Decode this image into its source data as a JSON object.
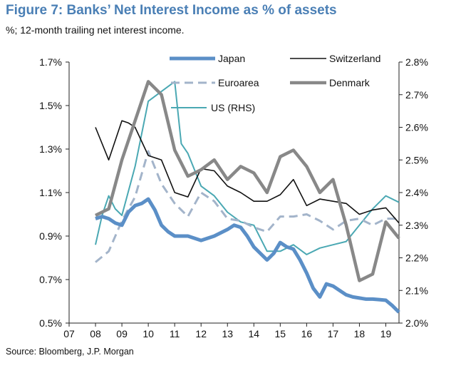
{
  "title": "Figure 7: Banks’ Net Interest Income as % of assets",
  "subtitle": "%; 12-month trailing net interest income.",
  "source": "Source: Bloomberg, J.P. Morgan",
  "chart_data": {
    "type": "line",
    "x_tick_labels": [
      "07",
      "08",
      "09",
      "10",
      "11",
      "12",
      "13",
      "14",
      "15",
      "16",
      "17",
      "18",
      "19"
    ],
    "x_range": [
      7,
      19.5
    ],
    "y_left": {
      "ticks": [
        "1.7%",
        "1.5%",
        "1.3%",
        "1.1%",
        "0.9%",
        "0.7%",
        "0.5%"
      ],
      "range": [
        0.5,
        1.7
      ]
    },
    "y_right": {
      "ticks": [
        "2.8%",
        "2.7%",
        "2.6%",
        "2.5%",
        "2.4%",
        "2.3%",
        "2.2%",
        "2.1%",
        "2.0%"
      ],
      "range": [
        2.0,
        2.8
      ]
    },
    "series": [
      {
        "name": "Japan",
        "axis": "left",
        "color": "#5b8fc7",
        "style": "solid",
        "width": 5,
        "x": [
          8,
          8.25,
          8.5,
          8.75,
          9,
          9.25,
          9.5,
          9.75,
          10,
          10.25,
          10.5,
          10.75,
          11,
          11.5,
          12,
          12.5,
          13,
          13.25,
          13.5,
          13.75,
          14,
          14.25,
          14.5,
          14.75,
          15,
          15.25,
          15.5,
          15.75,
          16,
          16.25,
          16.5,
          16.75,
          17,
          17.25,
          17.5,
          17.75,
          18,
          18.25,
          18.5,
          18.75,
          19,
          19.25,
          19.5
        ],
        "y": [
          0.98,
          0.99,
          0.98,
          0.96,
          0.95,
          1.01,
          1.04,
          1.05,
          1.07,
          1.02,
          0.95,
          0.92,
          0.9,
          0.9,
          0.88,
          0.9,
          0.93,
          0.95,
          0.94,
          0.9,
          0.85,
          0.82,
          0.79,
          0.82,
          0.87,
          0.85,
          0.84,
          0.79,
          0.73,
          0.66,
          0.62,
          0.68,
          0.67,
          0.65,
          0.63,
          0.62,
          0.615,
          0.61,
          0.61,
          0.608,
          0.605,
          0.58,
          0.55
        ]
      },
      {
        "name": "Switzerland",
        "axis": "left",
        "color": "#111111",
        "style": "solid",
        "width": 1.6,
        "x": [
          8,
          8.5,
          9,
          9.25,
          9.5,
          10,
          10.5,
          11,
          11.5,
          12,
          12.5,
          13,
          13.5,
          14,
          14.5,
          15,
          15.5,
          16,
          16.5,
          17,
          17.5,
          18,
          18.5,
          19,
          19.5
        ],
        "y": [
          1.4,
          1.25,
          1.43,
          1.42,
          1.4,
          1.27,
          1.25,
          1.1,
          1.08,
          1.21,
          1.2,
          1.13,
          1.1,
          1.06,
          1.06,
          1.09,
          1.16,
          1.04,
          1.07,
          1.06,
          1.05,
          1.0,
          1.02,
          1.03,
          0.96
        ]
      },
      {
        "name": "Euroarea",
        "axis": "left",
        "color": "#a3b4ca",
        "style": "dashed",
        "width": 3,
        "x": [
          8,
          8.5,
          9,
          9.5,
          10,
          10.5,
          11,
          11.5,
          12,
          12.5,
          13,
          13.5,
          14,
          14.5,
          15,
          15.5,
          16,
          16.5,
          17,
          17.5,
          18,
          18.5,
          19,
          19.5
        ],
        "y": [
          0.78,
          0.83,
          0.97,
          1.08,
          1.29,
          1.14,
          1.05,
          0.99,
          1.1,
          1.06,
          0.98,
          0.97,
          0.94,
          0.92,
          0.99,
          0.99,
          1.0,
          0.97,
          0.93,
          0.97,
          0.98,
          0.95,
          0.98,
          0.98
        ]
      },
      {
        "name": "Denmark",
        "axis": "right",
        "color": "#888888",
        "style": "solid",
        "width": 4.5,
        "x": [
          8,
          8.5,
          9,
          9.5,
          10,
          10.5,
          11,
          11.5,
          12,
          12.5,
          13,
          13.5,
          14,
          14.5,
          15,
          15.5,
          16,
          16.5,
          17,
          17.5,
          18,
          18.5,
          19,
          19.5
        ],
        "y": [
          2.33,
          2.35,
          2.5,
          2.62,
          2.74,
          2.7,
          2.53,
          2.45,
          2.47,
          2.5,
          2.44,
          2.48,
          2.46,
          2.4,
          2.51,
          2.53,
          2.48,
          2.4,
          2.44,
          2.3,
          2.13,
          2.15,
          2.31,
          2.26
        ]
      },
      {
        "name": "US (RHS)",
        "axis": "right",
        "color": "#4aa8b3",
        "style": "solid",
        "width": 2,
        "x": [
          8,
          8.25,
          8.5,
          8.75,
          9,
          9.5,
          10,
          10.5,
          11,
          11.25,
          11.5,
          12,
          12.5,
          13,
          13.5,
          14,
          14.5,
          15,
          15.5,
          16,
          16.5,
          17,
          17.5,
          18,
          18.5,
          19,
          19.5
        ],
        "y": [
          2.24,
          2.33,
          2.39,
          2.35,
          2.33,
          2.48,
          2.68,
          2.71,
          2.74,
          2.55,
          2.52,
          2.42,
          2.39,
          2.34,
          2.31,
          2.3,
          2.22,
          2.22,
          2.24,
          2.21,
          2.23,
          2.24,
          2.25,
          2.3,
          2.35,
          2.39,
          2.37
        ]
      }
    ],
    "legend": {
      "placement": "top",
      "entries": [
        "Japan",
        "Switzerland",
        "Euroarea",
        "Denmark",
        "US (RHS)"
      ]
    },
    "grid": false
  }
}
